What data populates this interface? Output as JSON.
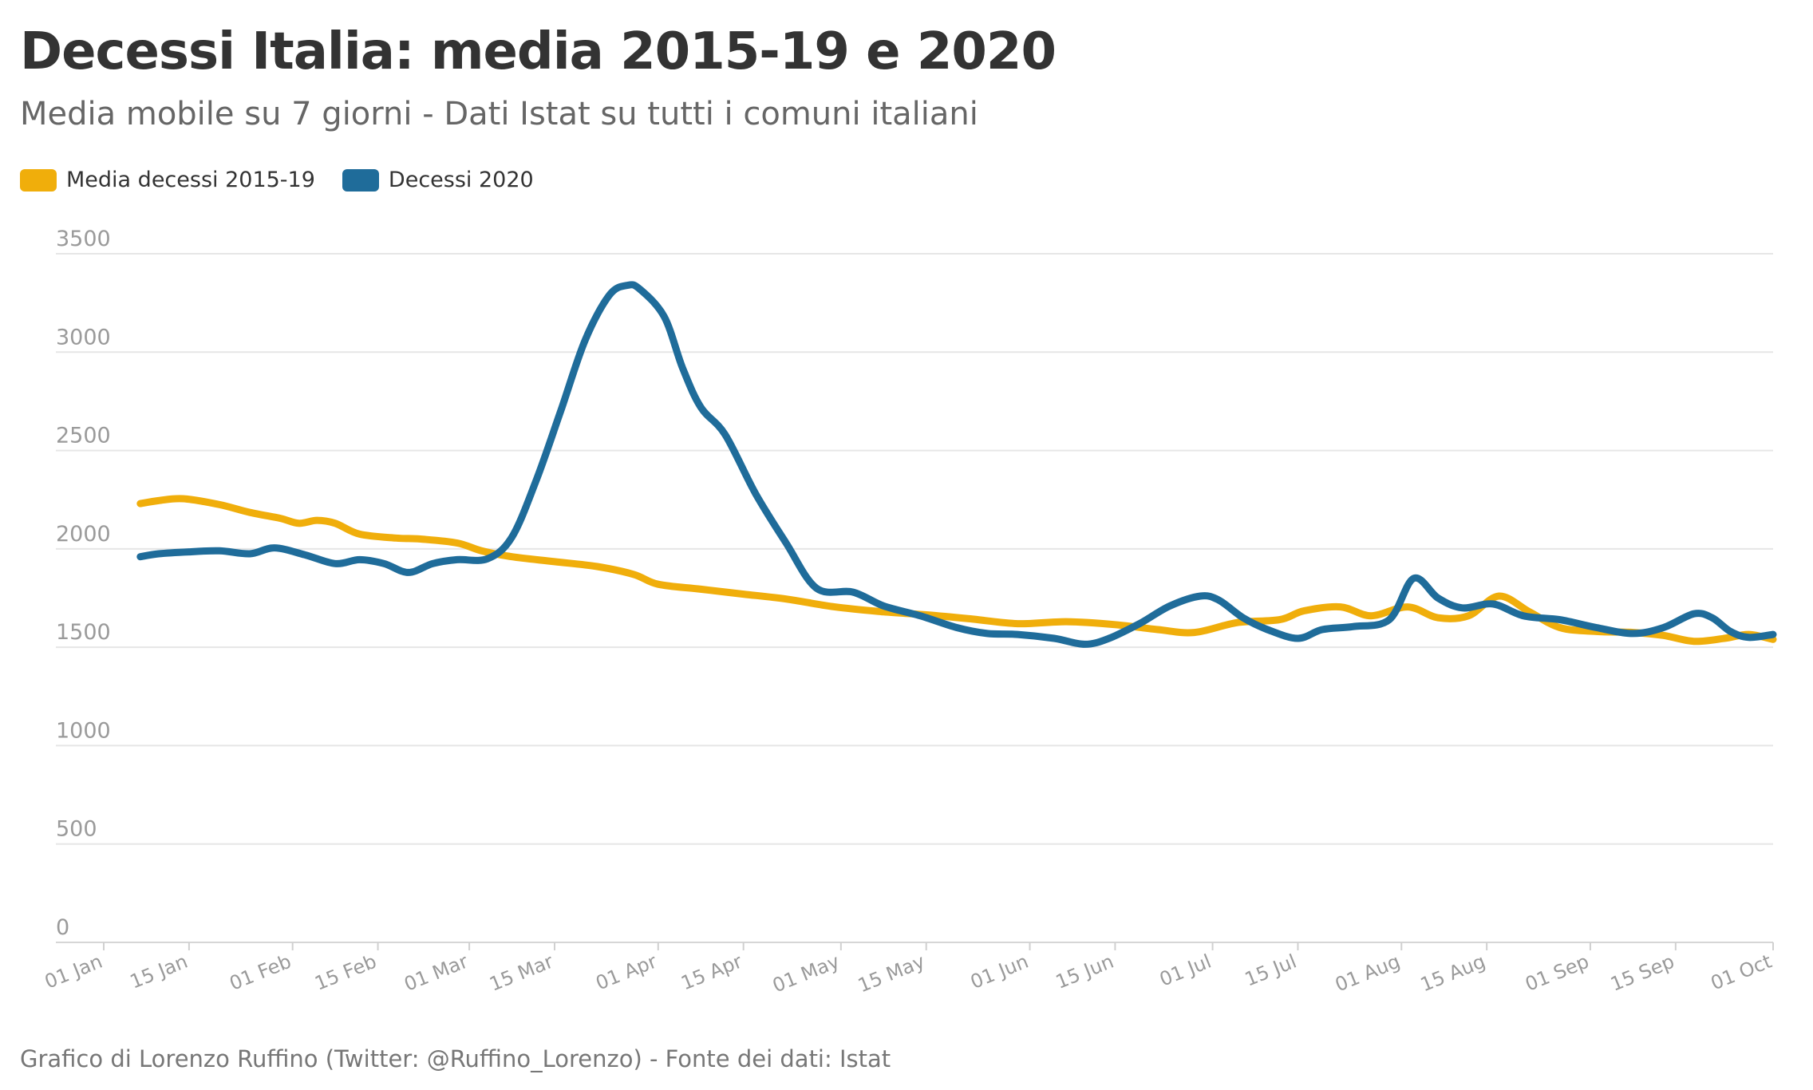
{
  "title": "Decessi Italia: media 2015-19 e 2020",
  "subtitle": "Media mobile su 7 giorni - Dati Istat su tutti i comuni italiani",
  "footer": "Grafico di Lorenzo Ruffino (Twitter: @Ruffino_Lorenzo) - Fonte dei dati: Istat",
  "chart_data": {
    "type": "line",
    "title": "Decessi Italia: media 2015-19 e 2020",
    "subtitle": "Media mobile su 7 giorni - Dati Istat su tutti i comuni italiani",
    "xlabel": "",
    "ylabel": "",
    "ylim": [
      0,
      3500
    ],
    "yticks": [
      0,
      500,
      1000,
      1500,
      2000,
      2500,
      3000,
      3500
    ],
    "xlim": [
      "2020-01-01",
      "2020-10-01"
    ],
    "xticks": [
      {
        "date": "2020-01-01",
        "label": "01 Jan"
      },
      {
        "date": "2020-01-15",
        "label": "15 Jan"
      },
      {
        "date": "2020-02-01",
        "label": "01 Feb"
      },
      {
        "date": "2020-02-15",
        "label": "15 Feb"
      },
      {
        "date": "2020-03-01",
        "label": "01 Mar"
      },
      {
        "date": "2020-03-15",
        "label": "15 Mar"
      },
      {
        "date": "2020-04-01",
        "label": "01 Apr"
      },
      {
        "date": "2020-04-15",
        "label": "15 Apr"
      },
      {
        "date": "2020-05-01",
        "label": "01 May"
      },
      {
        "date": "2020-05-15",
        "label": "15 May"
      },
      {
        "date": "2020-06-01",
        "label": "01 Jun"
      },
      {
        "date": "2020-06-15",
        "label": "15 Jun"
      },
      {
        "date": "2020-07-01",
        "label": "01 Jul"
      },
      {
        "date": "2020-07-15",
        "label": "15 Jul"
      },
      {
        "date": "2020-08-01",
        "label": "01 Aug"
      },
      {
        "date": "2020-08-15",
        "label": "15 Aug"
      },
      {
        "date": "2020-09-01",
        "label": "01 Sep"
      },
      {
        "date": "2020-09-15",
        "label": "15 Sep"
      },
      {
        "date": "2020-10-01",
        "label": "01 Oct"
      }
    ],
    "grid": true,
    "legend_position": "top-left",
    "series": [
      {
        "name": "Media decessi 2015-19",
        "color": "#f0ae0b",
        "x": [
          "2020-01-07",
          "2020-01-10",
          "2020-01-14",
          "2020-01-20",
          "2020-01-25",
          "2020-01-30",
          "2020-02-02",
          "2020-02-05",
          "2020-02-08",
          "2020-02-12",
          "2020-02-18",
          "2020-02-22",
          "2020-02-28",
          "2020-03-03",
          "2020-03-08",
          "2020-03-15",
          "2020-03-22",
          "2020-03-28",
          "2020-04-01",
          "2020-04-08",
          "2020-04-15",
          "2020-04-22",
          "2020-04-30",
          "2020-05-08",
          "2020-05-15",
          "2020-05-22",
          "2020-05-30",
          "2020-06-07",
          "2020-06-15",
          "2020-06-22",
          "2020-06-28",
          "2020-07-05",
          "2020-07-12",
          "2020-07-16",
          "2020-07-22",
          "2020-07-27",
          "2020-08-02",
          "2020-08-07",
          "2020-08-12",
          "2020-08-17",
          "2020-08-22",
          "2020-08-27",
          "2020-09-02",
          "2020-09-08",
          "2020-09-13",
          "2020-09-18",
          "2020-09-23",
          "2020-09-27",
          "2020-10-01"
        ],
        "values": [
          2230,
          2245,
          2255,
          2225,
          2185,
          2155,
          2130,
          2145,
          2130,
          2075,
          2055,
          2050,
          2030,
          1990,
          1960,
          1935,
          1910,
          1870,
          1820,
          1795,
          1770,
          1745,
          1705,
          1680,
          1665,
          1645,
          1620,
          1630,
          1615,
          1590,
          1575,
          1625,
          1640,
          1685,
          1705,
          1660,
          1705,
          1650,
          1660,
          1760,
          1680,
          1600,
          1580,
          1575,
          1560,
          1530,
          1545,
          1565,
          1540
        ]
      },
      {
        "name": "Decessi 2020",
        "color": "#1f6c9a",
        "x": [
          "2020-01-07",
          "2020-01-10",
          "2020-01-15",
          "2020-01-20",
          "2020-01-25",
          "2020-01-29",
          "2020-02-03",
          "2020-02-08",
          "2020-02-12",
          "2020-02-16",
          "2020-02-20",
          "2020-02-24",
          "2020-02-28",
          "2020-03-04",
          "2020-03-08",
          "2020-03-12",
          "2020-03-16",
          "2020-03-20",
          "2020-03-24",
          "2020-03-27",
          "2020-03-29",
          "2020-04-02",
          "2020-04-05",
          "2020-04-08",
          "2020-04-12",
          "2020-04-17",
          "2020-04-22",
          "2020-04-27",
          "2020-05-03",
          "2020-05-08",
          "2020-05-14",
          "2020-05-20",
          "2020-05-25",
          "2020-05-30",
          "2020-06-05",
          "2020-06-10",
          "2020-06-14",
          "2020-06-19",
          "2020-06-24",
          "2020-06-29",
          "2020-07-02",
          "2020-07-06",
          "2020-07-10",
          "2020-07-15",
          "2020-07-19",
          "2020-07-24",
          "2020-07-30",
          "2020-08-03",
          "2020-08-07",
          "2020-08-11",
          "2020-08-16",
          "2020-08-21",
          "2020-08-27",
          "2020-09-02",
          "2020-09-08",
          "2020-09-13",
          "2020-09-18",
          "2020-09-21",
          "2020-09-24",
          "2020-09-27",
          "2020-10-01"
        ],
        "values": [
          1960,
          1975,
          1985,
          1990,
          1975,
          2005,
          1970,
          1925,
          1945,
          1925,
          1880,
          1925,
          1945,
          1950,
          2060,
          2350,
          2700,
          3060,
          3290,
          3340,
          3320,
          3180,
          2920,
          2720,
          2580,
          2280,
          2030,
          1800,
          1780,
          1710,
          1660,
          1600,
          1570,
          1565,
          1545,
          1515,
          1545,
          1620,
          1710,
          1760,
          1740,
          1650,
          1590,
          1545,
          1590,
          1605,
          1640,
          1850,
          1750,
          1700,
          1720,
          1660,
          1640,
          1600,
          1570,
          1600,
          1670,
          1650,
          1580,
          1550,
          1565
        ]
      }
    ]
  },
  "legend": [
    {
      "label": "Media decessi 2015-19",
      "color": "#f0ae0b"
    },
    {
      "label": "Decessi 2020",
      "color": "#1f6c9a"
    }
  ]
}
